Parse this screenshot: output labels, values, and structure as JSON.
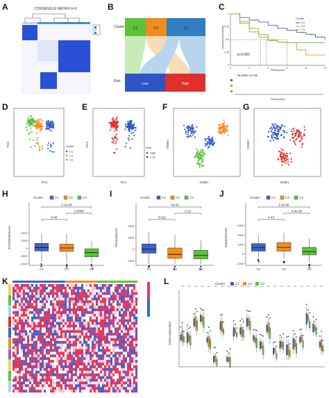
{
  "panels": {
    "A": {
      "letter": "A",
      "title": "CONSENSUS MATRIX k=3"
    },
    "B": {
      "letter": "B",
      "top_labels": [
        "C1",
        "C2",
        "C3"
      ],
      "bottom_labels": [
        "Low",
        "High"
      ],
      "side_top": "Cluster",
      "side_bottom": "Risk"
    },
    "C": {
      "letter": "C",
      "pvalue": "p<0.001",
      "ylabel": "Survival probability",
      "xlabel": "Time(years)",
      "legend_title": "Cluster",
      "legend": [
        "C1",
        "C2",
        "C3"
      ],
      "risk_title": "Number at risk",
      "risk_xlabel": "Time(years)"
    },
    "D": {
      "letter": "D",
      "xlabel": "PC1",
      "ylabel": "PC2",
      "legend_title": "Cluster",
      "legend": [
        "C1",
        "C2",
        "C3"
      ]
    },
    "E": {
      "letter": "E",
      "xlabel": "PC1",
      "ylabel": "PC2",
      "legend_title": "Risk",
      "legend": [
        "High",
        "Low"
      ]
    },
    "F": {
      "letter": "F",
      "xlabel": "tSNE1",
      "ylabel": "tSNE2"
    },
    "G": {
      "letter": "G",
      "xlabel": "tSNE1",
      "ylabel": "tSNE2"
    },
    "H": {
      "letter": "H",
      "legend_title": "Cluster",
      "legend": [
        "C1",
        "C2",
        "C3"
      ],
      "ylabel": "ESTIMATEScore",
      "pvals": [
        "2.1e-05",
        "0.0005",
        "0.46"
      ]
    },
    "I": {
      "letter": "I",
      "legend_title": "Cluster",
      "legend": [
        "C1",
        "C2",
        "C3"
      ],
      "ylabel": "StromalScore",
      "pvals": [
        "4e-05",
        "0.12",
        "0.011"
      ]
    },
    "J": {
      "letter": "J",
      "legend_title": "Cluster",
      "legend": [
        "C1",
        "C2",
        "C3"
      ],
      "ylabel": "ImmuneScore",
      "pvals": [
        "2.2e-06",
        "4.4e-06",
        "0.43"
      ]
    },
    "K": {
      "letter": "K"
    },
    "L": {
      "letter": "L",
      "legend_title": "Cluster",
      "legend": [
        "C1",
        "C2",
        "C3"
      ],
      "ylabel": "Gene expression"
    }
  },
  "colors": {
    "c1": "#3a62c9",
    "c2": "#f08c1e",
    "c3": "#5cc23a",
    "high": "#e0302a",
    "low": "#2f55c4",
    "heat_hi": "#e8385a",
    "heat_lo": "#3b63d8"
  },
  "chart_data": [
    {
      "panel": "H",
      "type": "box",
      "categories": [
        "C1",
        "C2",
        "C3"
      ],
      "ylabel": "ESTIMATEScore",
      "ylim": [
        -2200,
        3200
      ],
      "yticks": [
        -2000,
        -1000,
        0,
        1000,
        2000
      ],
      "boxes": [
        {
          "q1": -350,
          "median": 100,
          "q3": 650,
          "whislo": -1700,
          "whishi": 1900
        },
        {
          "q1": -400,
          "median": 50,
          "q3": 550,
          "whislo": -1900,
          "whishi": 1900
        },
        {
          "q1": -1100,
          "median": -550,
          "q3": -50,
          "whislo": -1900,
          "whishi": 900
        }
      ],
      "comparisons": [
        {
          "pair": [
            "C1",
            "C2"
          ],
          "label": "0.46"
        },
        {
          "pair": [
            "C1",
            "C3"
          ],
          "label": "2.1e-05"
        },
        {
          "pair": [
            "C2",
            "C3"
          ],
          "label": "0.0005"
        }
      ]
    },
    {
      "panel": "I",
      "type": "box",
      "categories": [
        "C1",
        "C2",
        "C3"
      ],
      "ylabel": "StromalScore",
      "ylim": [
        -1400,
        2200
      ],
      "yticks": [
        -1000,
        0,
        1000,
        2000
      ],
      "boxes": [
        {
          "q1": -350,
          "median": 0,
          "q3": 450,
          "whislo": -1250,
          "whishi": 1450
        },
        {
          "q1": -800,
          "median": -450,
          "q3": 100,
          "whislo": -1300,
          "whishi": 1250
        },
        {
          "q1": -850,
          "median": -550,
          "q3": -100,
          "whislo": -1300,
          "whishi": 750
        }
      ],
      "comparisons": [
        {
          "pair": [
            "C1",
            "C2"
          ],
          "label": "0.011"
        },
        {
          "pair": [
            "C1",
            "C3"
          ],
          "label": "4e-05"
        },
        {
          "pair": [
            "C2",
            "C3"
          ],
          "label": "0.12"
        }
      ]
    },
    {
      "panel": "J",
      "type": "box",
      "categories": [
        "C1",
        "C2",
        "C3"
      ],
      "ylabel": "ImmuneScore",
      "ylim": [
        -1200,
        3200
      ],
      "yticks": [
        -1000,
        0,
        1000,
        2000,
        3000
      ],
      "boxes": [
        {
          "q1": 300,
          "median": 650,
          "q3": 1100,
          "whislo": -400,
          "whishi": 2000
        },
        {
          "q1": 300,
          "median": 700,
          "q3": 1200,
          "whislo": -500,
          "whishi": 2200
        },
        {
          "q1": -100,
          "median": 250,
          "q3": 700,
          "whislo": -900,
          "whishi": 1600
        }
      ],
      "comparisons": [
        {
          "pair": [
            "C1",
            "C2"
          ],
          "label": "0.43"
        },
        {
          "pair": [
            "C1",
            "C3"
          ],
          "label": "2.2e-06"
        },
        {
          "pair": [
            "C2",
            "C3"
          ],
          "label": "4.4e-06"
        }
      ]
    },
    {
      "panel": "C",
      "type": "line",
      "xlabel": "Time(years)",
      "ylabel": "Survival probability",
      "xlim": [
        0,
        10
      ],
      "ylim": [
        0,
        1
      ],
      "series": [
        {
          "name": "C1",
          "x": [
            0,
            1,
            2,
            3,
            4,
            5,
            6,
            7,
            8,
            9,
            10
          ],
          "y": [
            1,
            0.93,
            0.88,
            0.84,
            0.78,
            0.72,
            0.68,
            0.64,
            0.6,
            0.55,
            0.5
          ]
        },
        {
          "name": "C2",
          "x": [
            0,
            1,
            2,
            3,
            4,
            5,
            6,
            7,
            8,
            9,
            10
          ],
          "y": [
            1,
            0.85,
            0.72,
            0.6,
            0.5,
            0.45,
            0.44,
            0.3,
            0.2,
            0.2,
            0.2
          ]
        },
        {
          "name": "C3",
          "x": [
            0,
            1,
            2,
            3,
            4,
            5,
            6,
            7,
            8,
            9,
            10
          ],
          "y": [
            1,
            0.82,
            0.65,
            0.55,
            0.48,
            0.45,
            0.44,
            0.44,
            0.44,
            0.44,
            0.44
          ]
        }
      ]
    }
  ]
}
